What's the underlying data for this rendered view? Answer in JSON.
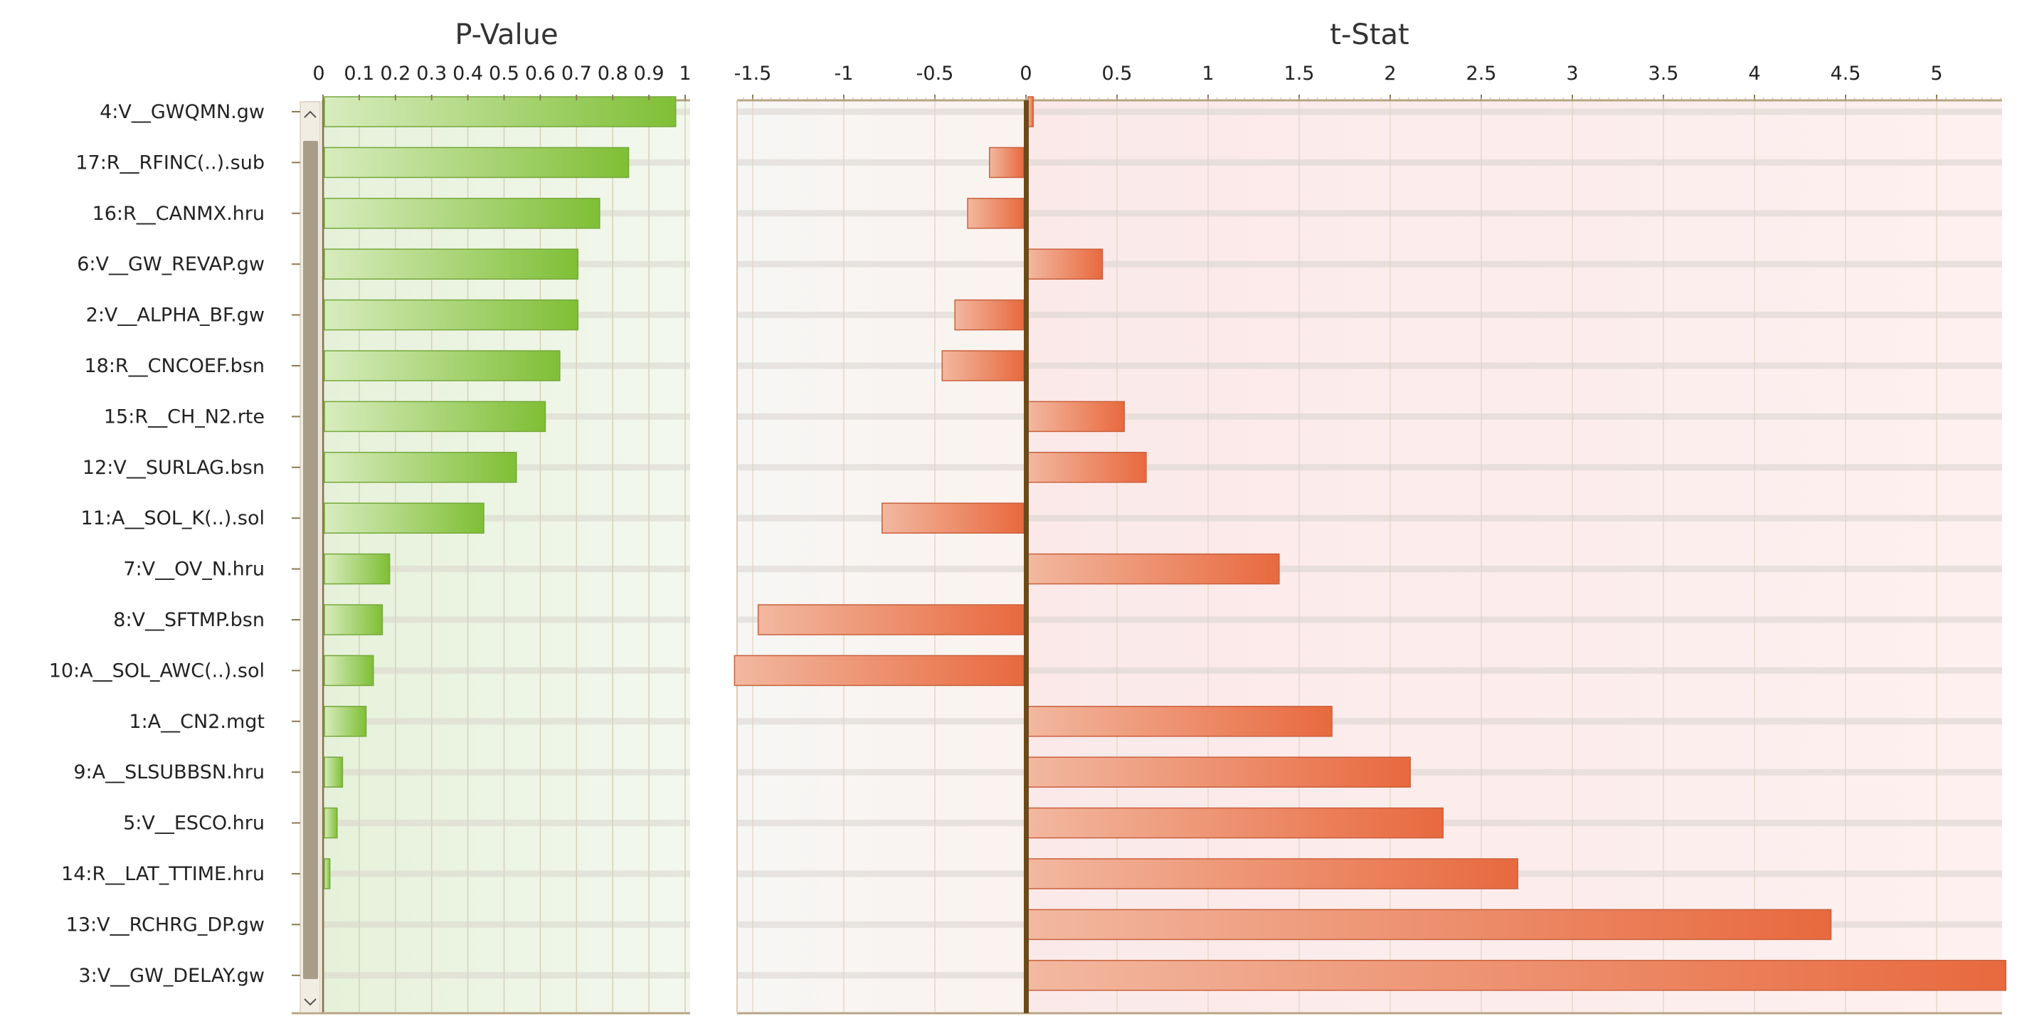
{
  "chart_data": [
    {
      "type": "bar",
      "orientation": "horizontal",
      "title": "P-Value",
      "xlim": [
        0,
        1
      ],
      "ticks": [
        "0",
        "0.1",
        "0.2",
        "0.3",
        "0.4",
        "0.5",
        "0.6",
        "0.7",
        "0.8",
        "0.9",
        "1"
      ],
      "categories": [
        "4:V__GWQMN.gw",
        "17:R__RFINC(..).sub",
        "16:R__CANMX.hru",
        "6:V__GW_REVAP.gw",
        "2:V__ALPHA_BF.gw",
        "18:R__CNCOEF.bsn",
        "15:R__CH_N2.rte",
        "12:V__SURLAG.bsn",
        "11:A__SOL_K(..).sol",
        "7:V__OV_N.hru",
        "8:V__SFTMP.bsn",
        "10:A__SOL_AWC(..).sol",
        "1:A__CN2.mgt",
        "9:A__SLSUBBSN.hru",
        "5:V__ESCO.hru",
        "14:R__LAT_TTIME.hru",
        "13:V__RCHRG_DP.gw",
        "3:V__GW_DELAY.gw"
      ],
      "values": [
        0.97,
        0.84,
        0.76,
        0.7,
        0.7,
        0.65,
        0.61,
        0.53,
        0.44,
        0.18,
        0.16,
        0.135,
        0.115,
        0.05,
        0.035,
        0.015,
        0.0,
        0.0
      ],
      "color": "#8cc63e"
    },
    {
      "type": "bar",
      "orientation": "horizontal",
      "title": "t-Stat",
      "xlim": [
        -1.6,
        5.4
      ],
      "ticks": [
        "-1.5",
        "-1",
        "-0.5",
        "0",
        "0.5",
        "1",
        "1.5",
        "2",
        "2.5",
        "3",
        "3.5",
        "4",
        "4.5",
        "5"
      ],
      "categories": [
        "4:V__GWQMN.gw",
        "17:R__RFINC(..).sub",
        "16:R__CANMX.hru",
        "6:V__GW_REVAP.gw",
        "2:V__ALPHA_BF.gw",
        "18:R__CNCOEF.bsn",
        "15:R__CH_N2.rte",
        "12:V__SURLAG.bsn",
        "11:A__SOL_K(..).sol",
        "7:V__OV_N.hru",
        "8:V__SFTMP.bsn",
        "10:A__SOL_AWC(..).sol",
        "1:A__CN2.mgt",
        "9:A__SLSUBBSN.hru",
        "5:V__ESCO.hru",
        "14:R__LAT_TTIME.hru",
        "13:V__RCHRG_DP.gw",
        "3:V__GW_DELAY.gw"
      ],
      "values": [
        0.04,
        -0.2,
        -0.32,
        0.42,
        -0.39,
        -0.46,
        0.54,
        0.66,
        -0.79,
        1.39,
        -1.47,
        -1.6,
        1.68,
        2.11,
        2.29,
        2.7,
        4.42,
        5.38
      ],
      "color": "#e8734a"
    }
  ]
}
